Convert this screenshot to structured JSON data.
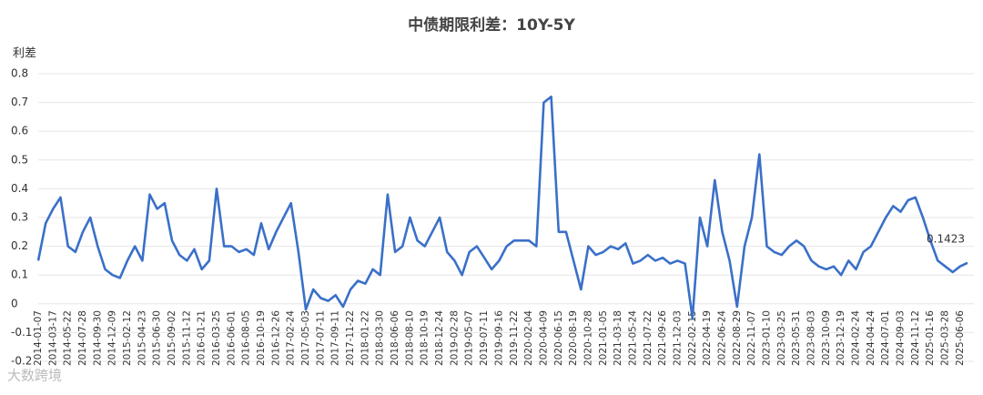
{
  "chart_data": {
    "type": "line",
    "title": "中债期限利差：10Y-5Y",
    "y_axis_label": "利差",
    "watermark": "大数跨境",
    "categories": [
      "2014-01-07",
      null,
      "2014-03-17",
      null,
      "2014-05-22",
      null,
      "2014-07-28",
      null,
      "2014-09-30",
      null,
      "2014-12-09",
      null,
      "2015-02-12",
      null,
      "2015-04-23",
      null,
      "2015-06-30",
      null,
      "2015-09-02",
      null,
      "2015-11-12",
      null,
      "2016-01-21",
      null,
      "2016-03-25",
      null,
      "2016-06-01",
      null,
      "2016-08-05",
      null,
      "2016-10-19",
      null,
      "2016-12-26",
      null,
      "2017-02-24",
      null,
      "2017-05-03",
      null,
      "2017-07-11",
      null,
      "2017-09-11",
      null,
      "2017-11-22",
      null,
      "2018-01-22",
      null,
      "2018-03-30",
      null,
      "2018-06-06",
      null,
      "2018-08-10",
      null,
      "2018-10-19",
      null,
      "2018-12-24",
      null,
      "2019-02-28",
      null,
      "2019-05-07",
      null,
      "2019-07-11",
      null,
      "2019-09-16",
      null,
      "2019-11-22",
      null,
      "2020-02-04",
      null,
      "2020-04-09",
      null,
      "2020-06-15",
      null,
      "2020-08-19",
      null,
      "2020-10-28",
      null,
      "2021-01-05",
      null,
      "2021-03-18",
      null,
      "2021-05-24",
      null,
      "2021-07-22",
      null,
      "2021-09-26",
      null,
      "2021-12-03",
      null,
      "2022-02-15",
      null,
      "2022-04-19",
      null,
      "2022-06-24",
      null,
      "2022-08-29",
      null,
      "2022-11-07",
      null,
      "2023-01-10",
      null,
      "2023-03-25",
      null,
      "2023-05-31",
      null,
      "2023-08-03",
      null,
      "2023-10-09",
      null,
      "2023-12-19",
      null,
      "2024-02-24",
      null,
      "2024-04-24",
      null,
      "2024-07-01",
      null,
      "2024-09-03",
      null,
      "2024-11-12",
      null,
      "2025-01-16",
      null,
      "2025-03-28",
      null,
      "2025-06-06",
      null
    ],
    "series": [
      {
        "color": "#3a70c8",
        "values": [
          0.15,
          0.28,
          0.33,
          0.37,
          0.2,
          0.18,
          0.25,
          0.3,
          0.2,
          0.12,
          0.1,
          0.09,
          0.15,
          0.2,
          0.15,
          0.38,
          0.33,
          0.35,
          0.22,
          0.17,
          0.15,
          0.19,
          0.12,
          0.15,
          0.4,
          0.2,
          0.2,
          0.18,
          0.19,
          0.17,
          0.28,
          0.19,
          0.25,
          0.3,
          0.35,
          0.18,
          -0.02,
          0.05,
          0.02,
          0.01,
          0.03,
          -0.01,
          0.05,
          0.08,
          0.07,
          0.12,
          0.1,
          0.38,
          0.18,
          0.2,
          0.3,
          0.22,
          0.2,
          0.25,
          0.3,
          0.18,
          0.15,
          0.1,
          0.18,
          0.2,
          0.16,
          0.12,
          0.15,
          0.2,
          0.22,
          0.22,
          0.22,
          0.2,
          0.7,
          0.72,
          0.25,
          0.25,
          0.15,
          0.05,
          0.2,
          0.17,
          0.18,
          0.2,
          0.19,
          0.21,
          0.14,
          0.15,
          0.17,
          0.15,
          0.16,
          0.14,
          0.15,
          0.14,
          -0.05,
          0.3,
          0.2,
          0.43,
          0.25,
          0.15,
          -0.01,
          0.2,
          0.3,
          0.52,
          0.2,
          0.18,
          0.17,
          0.2,
          0.22,
          0.2,
          0.15,
          0.13,
          0.12,
          0.13,
          0.1,
          0.15,
          0.12,
          0.18,
          0.2,
          0.25,
          0.3,
          0.34,
          0.32,
          0.36,
          0.37,
          0.3,
          0.22,
          0.15,
          0.13,
          0.11,
          0.13,
          0.1423
        ]
      }
    ],
    "ylim": [
      -0.2,
      0.8
    ],
    "yticks": [
      0.8,
      0.7,
      0.6,
      0.5,
      0.4,
      0.3,
      0.2,
      0.1,
      0,
      -0.1,
      -0.2
    ],
    "grid": true
  }
}
